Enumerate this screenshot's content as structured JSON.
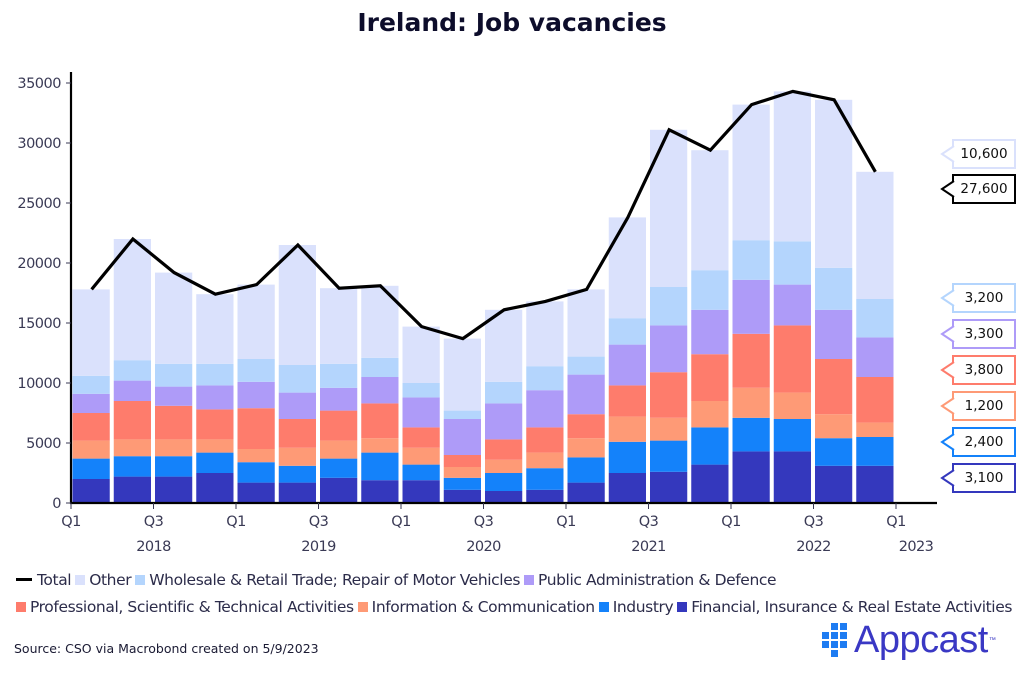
{
  "title": "Ireland: Job vacancies",
  "source": "Source: CSO via Macrobond created on 5/9/2023",
  "logo": {
    "text": "Appcast",
    "tm": "™"
  },
  "chart_data": {
    "type": "bar",
    "stacked": true,
    "title": "Ireland: Job vacancies",
    "xlabel": "",
    "ylabel": "",
    "ylim": [
      0,
      35000
    ],
    "yticks": [
      0,
      5000,
      10000,
      15000,
      20000,
      25000,
      30000,
      35000
    ],
    "ytick_labels": [
      "0",
      "5000",
      "10000",
      "15000",
      "20000",
      "25000",
      "30000",
      "35000"
    ],
    "xtick_labels": [
      {
        "q": "Q1",
        "year": ""
      },
      {
        "q": "Q3",
        "year": "2018"
      },
      {
        "q": "Q1",
        "year": ""
      },
      {
        "q": "Q3",
        "year": "2019"
      },
      {
        "q": "Q1",
        "year": ""
      },
      {
        "q": "Q3",
        "year": "2020"
      },
      {
        "q": "Q1",
        "year": ""
      },
      {
        "q": "Q3",
        "year": "2021"
      },
      {
        "q": "Q1",
        "year": ""
      },
      {
        "q": "Q3",
        "year": "2022"
      },
      {
        "q": "Q1",
        "year": "2023"
      }
    ],
    "categories": [
      "2018 Q1",
      "2018 Q2",
      "2018 Q3",
      "2018 Q4",
      "2019 Q1",
      "2019 Q2",
      "2019 Q3",
      "2019 Q4",
      "2020 Q1",
      "2020 Q2",
      "2020 Q3",
      "2020 Q4",
      "2021 Q1",
      "2021 Q2",
      "2021 Q3",
      "2021 Q4",
      "2022 Q1",
      "2022 Q2",
      "2022 Q3",
      "2022 Q4"
    ],
    "grid": false,
    "legend_position": "bottom",
    "series": [
      {
        "name": "Financial, Insurance & Real Estate Activities",
        "color": "#3438bd",
        "values": [
          2000,
          2200,
          2200,
          2500,
          1700,
          1700,
          2100,
          1900,
          1900,
          1100,
          1000,
          1100,
          1700,
          2500,
          2600,
          3200,
          4300,
          4300,
          3100,
          3100
        ]
      },
      {
        "name": "Industry",
        "color": "#1482fa",
        "values": [
          1700,
          1700,
          1700,
          1700,
          1700,
          1400,
          1600,
          2300,
          1300,
          1000,
          1500,
          1800,
          2100,
          2600,
          2600,
          3100,
          2800,
          2700,
          2300,
          2400
        ]
      },
      {
        "name": "Information & Communication",
        "color": "#fe9a76",
        "values": [
          1500,
          1400,
          1400,
          1100,
          1100,
          1500,
          1500,
          1200,
          1400,
          900,
          1100,
          1300,
          1600,
          2100,
          1900,
          2200,
          2500,
          2200,
          2000,
          1200
        ]
      },
      {
        "name": "Professional, Scientific & Technical Activities",
        "color": "#fe7c6c",
        "values": [
          2300,
          3200,
          2800,
          2500,
          3400,
          2400,
          2500,
          2900,
          1700,
          1000,
          1700,
          2100,
          2000,
          2600,
          3800,
          3900,
          4500,
          5600,
          4600,
          3800
        ]
      },
      {
        "name": "Public Administration & Defence",
        "color": "#ae9bf8",
        "values": [
          1600,
          1700,
          1600,
          2000,
          2200,
          2200,
          1900,
          2200,
          2500,
          3000,
          3000,
          3100,
          3300,
          3400,
          3900,
          3700,
          4500,
          3400,
          4100,
          3300
        ]
      },
      {
        "name": "Wholesale & Retail Trade; Repair of Motor Vehicles",
        "color": "#b4d5fd",
        "values": [
          1500,
          1700,
          1900,
          1800,
          1900,
          2300,
          2000,
          1600,
          1200,
          700,
          1800,
          2000,
          1500,
          2200,
          3200,
          3300,
          3300,
          3600,
          3500,
          3200
        ]
      },
      {
        "name": "Other",
        "color": "#dae1fc",
        "values": [
          7200,
          10100,
          7600,
          5800,
          6200,
          10000,
          6300,
          6000,
          4700,
          6000,
          6000,
          5400,
          5600,
          8400,
          13100,
          10000,
          11300,
          12500,
          14000,
          10600
        ]
      }
    ],
    "line_series": {
      "name": "Total",
      "color": "#000000",
      "values": [
        17800,
        22000,
        19200,
        17400,
        18200,
        21500,
        17900,
        18100,
        14700,
        13700,
        16100,
        16800,
        17800,
        23800,
        31100,
        29400,
        33200,
        34300,
        33600,
        27600
      ]
    },
    "legend_order": [
      "Total",
      "Other",
      "Wholesale & Retail Trade; Repair of Motor Vehicles",
      "Public Administration & Defence",
      "Professional, Scientific & Technical Activities",
      "Information & Communication",
      "Industry",
      "Financial, Insurance & Real Estate Activities"
    ],
    "last_value_labels": [
      {
        "series": "Other",
        "label": "10,600",
        "color": "#dae1fc"
      },
      {
        "series": "Total",
        "label": "27,600",
        "color": "#000000"
      },
      {
        "series": "Wholesale & Retail Trade; Repair of Motor Vehicles",
        "label": "3,200",
        "color": "#b4d5fd"
      },
      {
        "series": "Public Administration & Defence",
        "label": "3,300",
        "color": "#ae9bf8"
      },
      {
        "series": "Professional, Scientific & Technical Activities",
        "label": "3,800",
        "color": "#fe7c6c"
      },
      {
        "series": "Information & Communication",
        "label": "1,200",
        "color": "#fe9a76"
      },
      {
        "series": "Industry",
        "label": "2,400",
        "color": "#1482fa"
      },
      {
        "series": "Financial, Insurance & Real Estate Activities",
        "label": "3,100",
        "color": "#3438bd"
      }
    ]
  },
  "legend": {
    "row1": [
      {
        "label": "Total",
        "kind": "line",
        "color": "#000000"
      },
      {
        "label": "Other",
        "kind": "box",
        "color": "#dae1fc"
      },
      {
        "label": "Wholesale & Retail Trade; Repair of Motor Vehicles",
        "kind": "box",
        "color": "#b4d5fd"
      },
      {
        "label": "Public Administration & Defence",
        "kind": "box",
        "color": "#ae9bf8"
      }
    ],
    "row2": [
      {
        "label": "Professional, Scientific & Technical Activities",
        "kind": "box",
        "color": "#fe7c6c"
      },
      {
        "label": "Information & Communication",
        "kind": "box",
        "color": "#fe9a76"
      },
      {
        "label": "Industry",
        "kind": "box",
        "color": "#1482fa"
      },
      {
        "label": "Financial, Insurance & Real Estate Activities",
        "kind": "box",
        "color": "#3438bd"
      }
    ]
  }
}
